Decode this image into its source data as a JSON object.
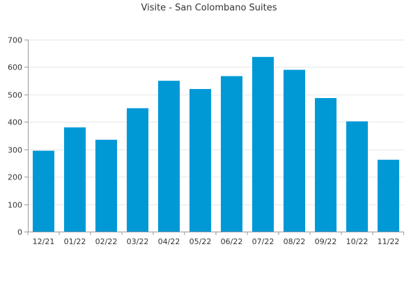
{
  "chart_data": {
    "type": "bar",
    "title": "Visite - San Colombano Suites",
    "xlabel": "",
    "ylabel": "",
    "categories": [
      "12/21",
      "01/22",
      "02/22",
      "03/22",
      "04/22",
      "05/22",
      "06/22",
      "07/22",
      "08/22",
      "09/22",
      "10/22",
      "11/22"
    ],
    "values": [
      295,
      380,
      335,
      450,
      550,
      520,
      567,
      637,
      590,
      487,
      402,
      262
    ],
    "ylim": [
      0,
      700
    ],
    "yticks": [
      0,
      100,
      200,
      300,
      400,
      500,
      600,
      700
    ],
    "grid": true,
    "legend": "none",
    "bar_color": "#0099d6"
  }
}
